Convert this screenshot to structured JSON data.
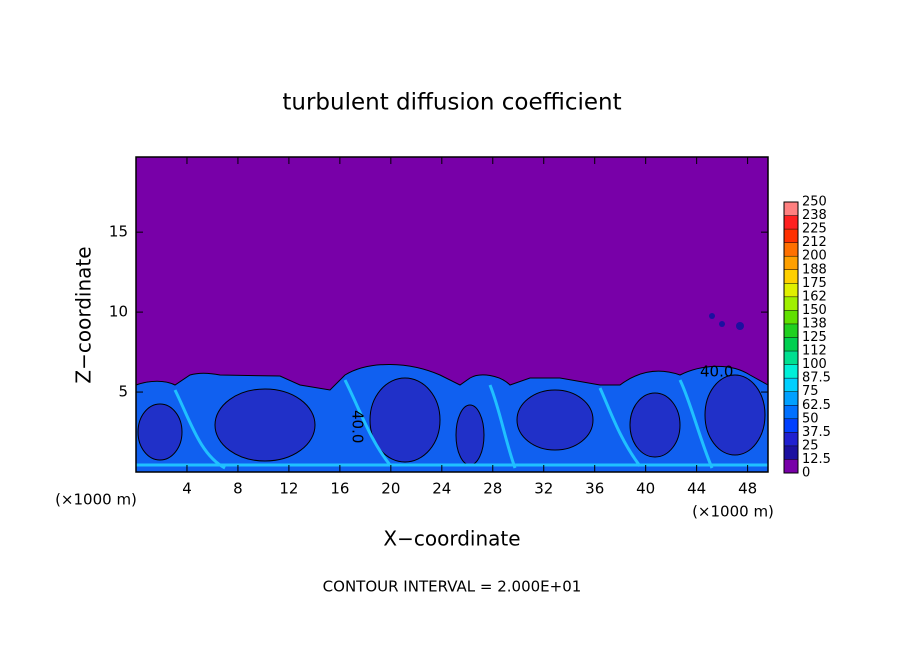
{
  "chart_data": {
    "type": "contour",
    "title": "turbulent diffusion coefficient",
    "x_label": "X−coordinate",
    "y_label": "Z−coordinate",
    "x_unit": "(×1000 m)",
    "x_unit_right": "(×1000 m)",
    "footnote": "CONTOUR INTERVAL = 2.000E+01",
    "contour_labels": [
      "40.0",
      "40.0"
    ],
    "xlim": [
      0,
      49.6
    ],
    "ylim": [
      0,
      19.7
    ],
    "xticks": [
      4,
      8,
      12,
      16,
      20,
      24,
      28,
      32,
      36,
      40,
      44,
      48
    ],
    "yticks": [
      5,
      10,
      15
    ],
    "colorbar_levels": [
      0,
      12.5,
      25,
      37.5,
      50,
      62.5,
      75,
      87.5,
      100,
      {
        "value": 112.5,
        "label": "112"
      },
      125,
      {
        "value": 137.5,
        "label": "138"
      },
      150,
      {
        "value": 162.5,
        "label": "162"
      },
      175,
      {
        "value": 187.5,
        "label": "188"
      },
      200,
      {
        "value": 212.5,
        "label": "212"
      },
      225,
      {
        "value": 237.5,
        "label": "238"
      },
      250
    ],
    "colors": [
      "#7800a8",
      "#1c10a0",
      "#2020d0",
      "#0040ff",
      "#0070ff",
      "#00a0ff",
      "#00d0ff",
      "#00f0d8",
      "#00e090",
      "#00d050",
      "#20d020",
      "#60e000",
      "#a0f000",
      "#e0f000",
      "#ffd000",
      "#ffa000",
      "#ff7000",
      "#ff3000",
      "#ff2020",
      "#ff8080"
    ]
  }
}
